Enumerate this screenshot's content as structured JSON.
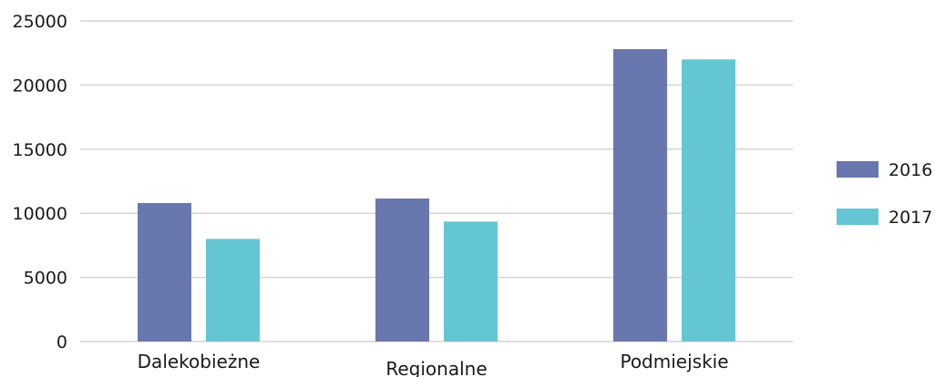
{
  "chart_data": {
    "type": "bar",
    "categories": [
      "Dalekobieżne",
      "Regionalne",
      "Podmiejskie"
    ],
    "series": [
      {
        "name": "2016",
        "color": "#6877ad",
        "values": [
          10800,
          11150,
          22800
        ]
      },
      {
        "name": "2017",
        "color": "#64c5d3",
        "values": [
          8000,
          9350,
          22000
        ]
      }
    ],
    "yticks": [
      0,
      5000,
      10000,
      15000,
      20000,
      25000
    ],
    "ylim": [
      0,
      25000
    ],
    "grid": true,
    "legend_position": "right"
  }
}
